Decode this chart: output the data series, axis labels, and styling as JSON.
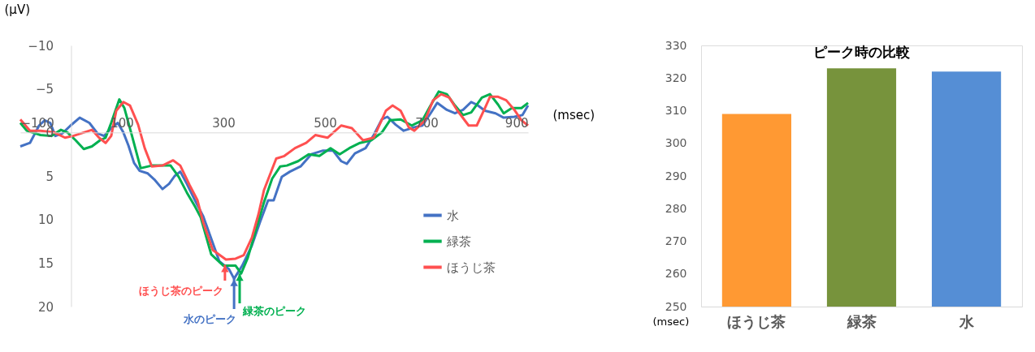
{
  "chart_data": [
    {
      "type": "line",
      "xlabel": "(msec)",
      "ylabel": "(μV)",
      "xlim": [
        -100,
        900
      ],
      "xticks": [
        -100,
        100,
        300,
        500,
        700,
        900
      ],
      "ylim": [
        20,
        -10
      ],
      "yticks": [
        -10,
        -5,
        0,
        5,
        10,
        15,
        20
      ],
      "legend": "bottom right",
      "series": [
        {
          "name": "水",
          "color": "#4472c4",
          "x": [
            -100,
            -81,
            -63,
            -52,
            -41,
            -31,
            -17,
            -1,
            17,
            36,
            52,
            65,
            79,
            92,
            103,
            113,
            124,
            135,
            151,
            164,
            180,
            193,
            204,
            215,
            228,
            244,
            260,
            292,
            311,
            321,
            337,
            356,
            372,
            388,
            399,
            415,
            431,
            452,
            473,
            495,
            516,
            532,
            543,
            559,
            580,
            596,
            612,
            623,
            639,
            655,
            676,
            692,
            708,
            721,
            740,
            756,
            772,
            788,
            799,
            815,
            836,
            852,
            873,
            889,
            900
          ],
          "values": [
            1.6,
            1.2,
            -0.8,
            -1.4,
            -1.1,
            0.4,
            0.1,
            -0.8,
            -1.7,
            -1.1,
            0.1,
            0.4,
            -0.5,
            -1.1,
            0,
            1.5,
            3.5,
            4.4,
            4.7,
            5.4,
            6.5,
            5.9,
            5.0,
            4.5,
            5.9,
            7.8,
            9.6,
            14.8,
            15.7,
            16.8,
            15.3,
            13,
            10.3,
            7.8,
            7.8,
            5.1,
            4.5,
            3.9,
            2.5,
            2.1,
            2.1,
            3.3,
            3.6,
            2.4,
            1.8,
            0.3,
            -1.5,
            -1.8,
            -0.9,
            -0.2,
            -0.6,
            -0.8,
            -2.2,
            -3.4,
            -2.6,
            -2.2,
            -2.6,
            -3.5,
            -3.2,
            -2.5,
            -2.2,
            -1.7,
            -1.8,
            -2,
            -3.1
          ]
        },
        {
          "name": "緑茶",
          "color": "#00b050",
          "x": [
            -100,
            -87,
            -60,
            -39,
            -20,
            -7,
            9,
            25,
            41,
            57,
            68,
            79,
            95,
            105,
            121,
            137,
            159,
            180,
            196,
            212,
            228,
            244,
            255,
            276,
            300,
            324,
            335,
            348,
            364,
            380,
            396,
            412,
            425,
            447,
            468,
            489,
            511,
            529,
            548,
            569,
            591,
            612,
            628,
            649,
            671,
            692,
            708,
            724,
            740,
            756,
            772,
            788,
            809,
            825,
            841,
            852,
            868,
            887,
            900
          ],
          "values": [
            -1.1,
            -0.2,
            0.3,
            0.4,
            -0.3,
            0,
            0.9,
            1.9,
            1.6,
            0.9,
            0.6,
            -1.1,
            -3.8,
            -2.8,
            0.6,
            4.1,
            3.8,
            3.8,
            3.8,
            5.1,
            6.9,
            8.5,
            9.7,
            14,
            15.3,
            15.3,
            16.2,
            14.4,
            11.2,
            8,
            5.3,
            3.9,
            3.8,
            3.3,
            2.5,
            2.7,
            1.8,
            2.5,
            1.8,
            1.2,
            0.9,
            0,
            -1.4,
            -1.5,
            -0.8,
            -1.4,
            -3.1,
            -4.7,
            -4.4,
            -3.1,
            -2,
            -2.3,
            -4,
            -4.4,
            -3.2,
            -2.2,
            -2.8,
            -2.8,
            -3.4
          ]
        },
        {
          "name": "ほうじ茶",
          "color": "#ff5050",
          "x": [
            -100,
            -81,
            -60,
            -33,
            -12,
            4,
            25,
            41,
            55,
            68,
            79,
            89,
            103,
            116,
            132,
            145,
            159,
            180,
            201,
            215,
            233,
            249,
            260,
            279,
            305,
            324,
            340,
            356,
            369,
            380,
            404,
            420,
            441,
            463,
            481,
            505,
            532,
            553,
            575,
            596,
            620,
            633,
            649,
            665,
            676,
            697,
            713,
            729,
            745,
            761,
            783,
            799,
            815,
            825,
            841,
            857,
            873,
            887,
            900
          ],
          "values": [
            -1.5,
            -0.2,
            -0.2,
            0,
            0.6,
            0.4,
            0,
            -0.3,
            0.6,
            1.2,
            0.4,
            -2.5,
            -3.5,
            -3.1,
            -0.9,
            1.8,
            3.9,
            3.8,
            3.2,
            3.8,
            6,
            7.8,
            10.3,
            13.5,
            14.6,
            14.5,
            14.1,
            12.1,
            9.4,
            6.6,
            3,
            2.7,
            1.8,
            1.2,
            0.3,
            0.6,
            -0.8,
            -0.5,
            0.9,
            0.6,
            -2.5,
            -3.1,
            -2.5,
            -0.6,
            -0.2,
            -1.4,
            -3.7,
            -4.4,
            -4,
            -2.5,
            -0.8,
            -0.8,
            -2.8,
            -4.1,
            -4.1,
            -3.7,
            -2.6,
            -1.4,
            -0.8
          ]
        }
      ],
      "annotations": [
        {
          "text": "水のピーク",
          "x": 321,
          "y": 16.8
        },
        {
          "text": "緑茶のピーク",
          "x": 332,
          "y": 16.2
        },
        {
          "text": "ほうじ茶のピーク",
          "x": 303,
          "y": 15.2
        }
      ]
    },
    {
      "type": "bar",
      "title": "ピーク時の比較",
      "ylabel": "(msec)",
      "categories": [
        "ほうじ茶",
        "緑茶",
        "水"
      ],
      "values": [
        309,
        323,
        322
      ],
      "colors": [
        "#ff9933",
        "#77933c",
        "#558ed5"
      ],
      "ylim": [
        250,
        330
      ],
      "yticks": [
        250,
        260,
        270,
        280,
        290,
        300,
        310,
        320,
        330
      ]
    }
  ]
}
